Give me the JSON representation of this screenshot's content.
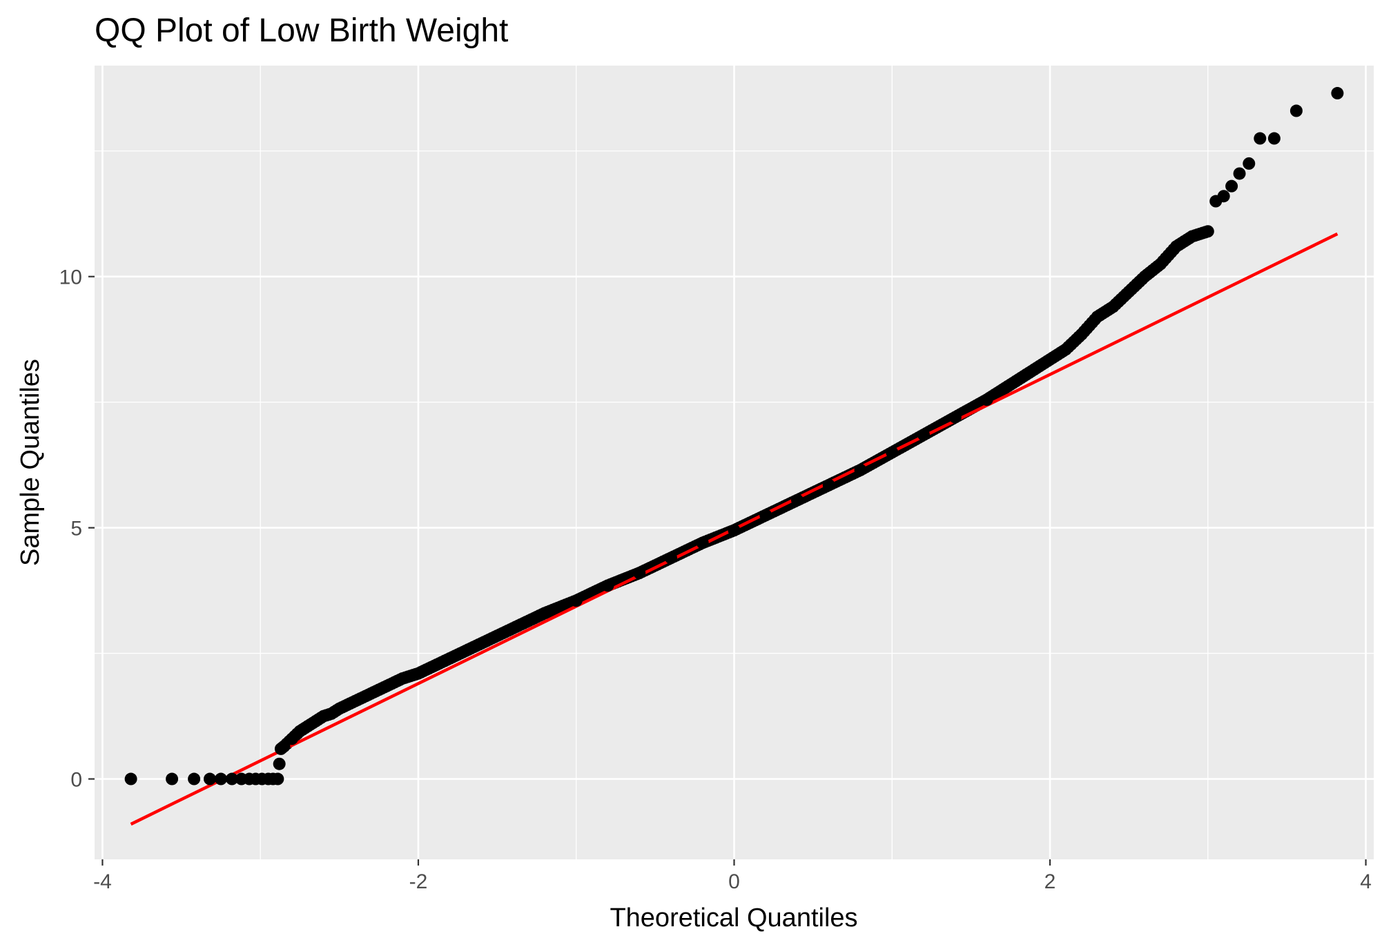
{
  "chart_data": {
    "type": "scatter",
    "title": "QQ Plot of Low Birth Weight",
    "xlabel": "Theoretical Quantiles",
    "ylabel": "Sample Quantiles",
    "xlim": [
      -4.05,
      4.05
    ],
    "ylim": [
      -1.6,
      14.2
    ],
    "x_ticks": [
      -4,
      -2,
      0,
      2,
      4
    ],
    "x_tick_labels": [
      "-4",
      "-2",
      "0",
      "2",
      "4"
    ],
    "y_ticks": [
      0,
      5,
      10
    ],
    "y_tick_labels": [
      "0",
      "5",
      "10"
    ],
    "grid": true,
    "legend": "none",
    "colors": {
      "panel_background": "#ebebeb",
      "grid": "#ffffff",
      "points": "#000000",
      "reference_line": "#ff0000"
    },
    "series": [
      {
        "kind": "points",
        "x": [
          -3.82,
          -3.56,
          -3.42,
          -3.32,
          -3.25,
          -3.18,
          -3.12,
          -3.07,
          -3.03,
          -2.99,
          -2.95,
          -2.92,
          -2.89,
          -2.87,
          -2.85,
          -2.8,
          -2.75,
          -2.7,
          -2.65,
          -2.6,
          -2.55,
          -2.5,
          -2.4,
          -2.3,
          -2.2,
          -2.1,
          -2.0,
          -1.8,
          -1.6,
          -1.4,
          -1.2,
          -1.0,
          -0.8,
          -0.6,
          -0.4,
          -0.2,
          0.0,
          0.2,
          0.4,
          0.6,
          0.8,
          1.0,
          1.2,
          1.4,
          1.6,
          1.8,
          2.0,
          2.1,
          2.2,
          2.3,
          2.4,
          2.5,
          2.6,
          2.7,
          2.8,
          2.9,
          3.0,
          3.05,
          3.1,
          3.15,
          3.2,
          3.26,
          3.33,
          3.42,
          3.56,
          3.82
        ],
        "y": [
          0.0,
          0.0,
          0.0,
          0.0,
          0.0,
          0.0,
          0.0,
          0.0,
          0.0,
          0.0,
          0.0,
          0.0,
          0.0,
          0.6,
          0.65,
          0.8,
          0.95,
          1.05,
          1.15,
          1.25,
          1.3,
          1.4,
          1.55,
          1.7,
          1.85,
          2.0,
          2.1,
          2.4,
          2.7,
          3.0,
          3.3,
          3.55,
          3.85,
          4.1,
          4.4,
          4.7,
          4.95,
          5.25,
          5.55,
          5.85,
          6.15,
          6.5,
          6.85,
          7.2,
          7.55,
          7.95,
          8.35,
          8.55,
          8.85,
          9.2,
          9.4,
          9.7,
          10.0,
          10.25,
          10.6,
          10.8,
          10.9,
          11.5,
          11.6,
          11.8,
          12.05,
          12.25,
          12.75,
          12.75,
          13.3,
          13.65
        ]
      },
      {
        "kind": "line",
        "x": [
          -3.82,
          3.82
        ],
        "y": [
          -0.9,
          10.85
        ]
      }
    ]
  }
}
